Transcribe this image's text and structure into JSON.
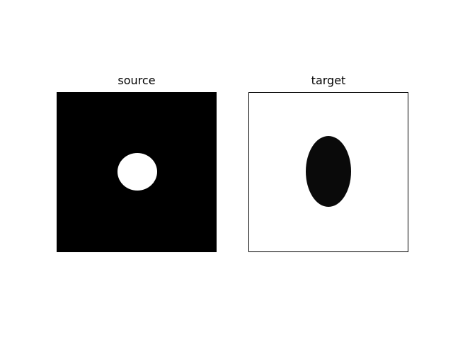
{
  "panels": [
    {
      "title": "source",
      "background_color": "#000000",
      "shape": "circle",
      "shape_color": "#ffffff"
    },
    {
      "title": "target",
      "background_color": "#ffffff",
      "shape": "ellipse",
      "shape_color": "#0a0a0a"
    }
  ]
}
